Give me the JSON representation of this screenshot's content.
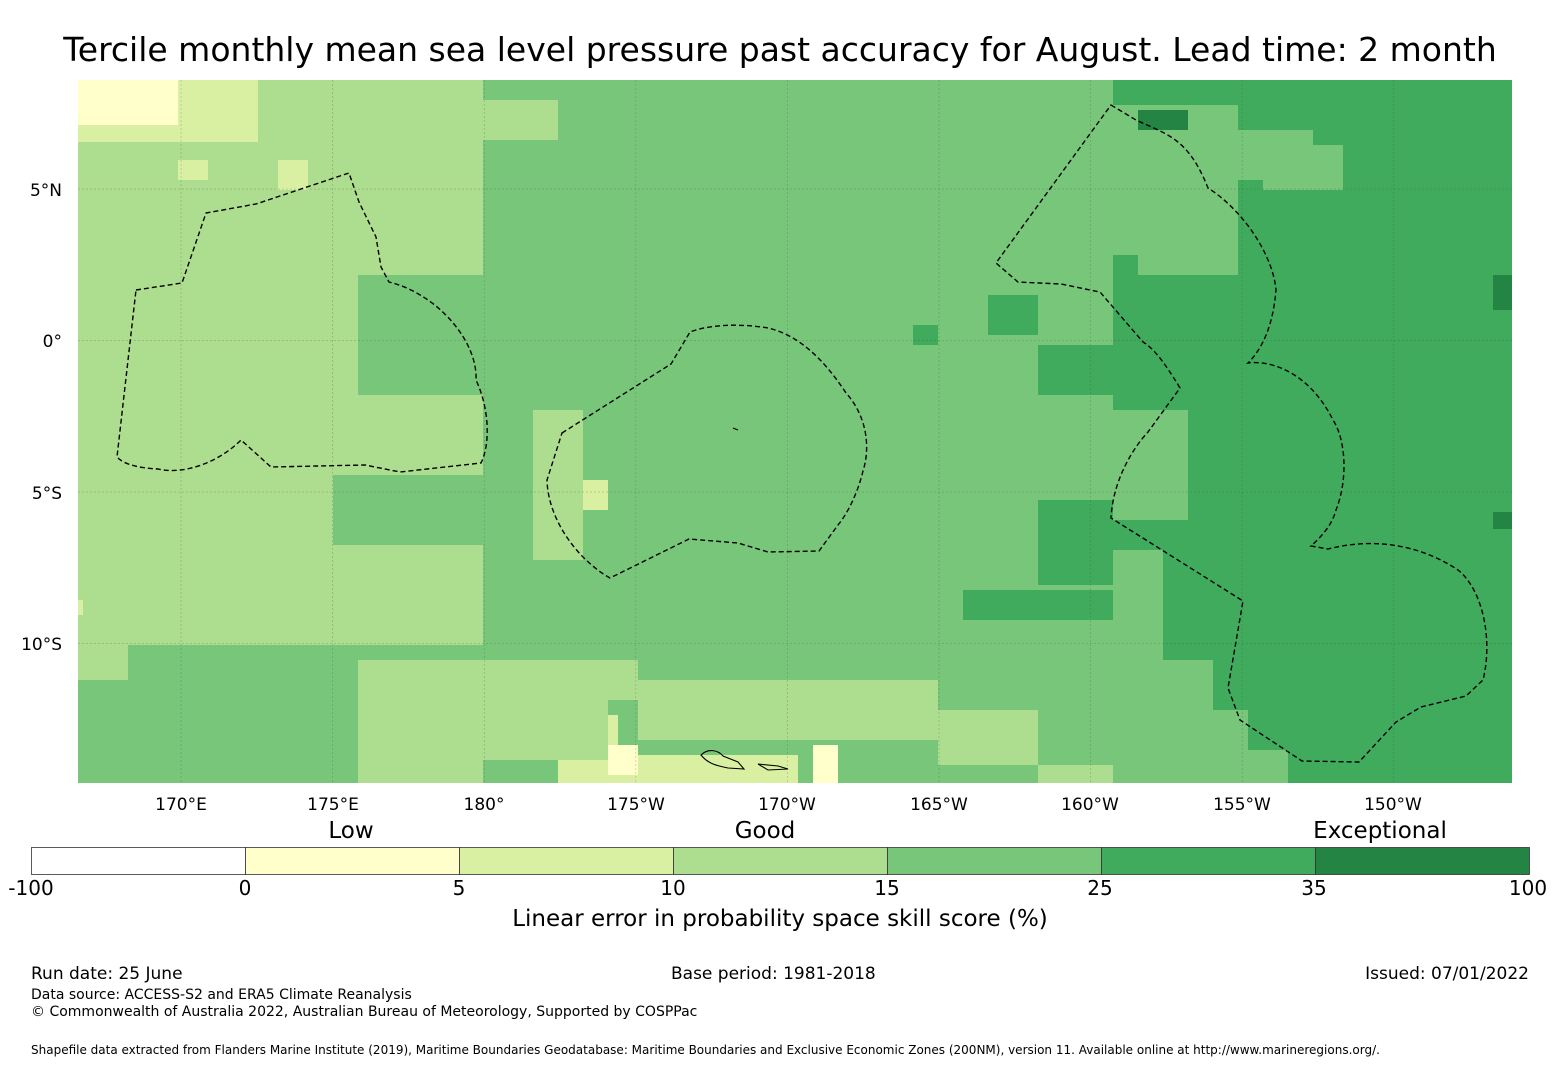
{
  "title": "Tercile monthly mean sea level pressure past accuracy for August. Lead time: 2 month",
  "map": {
    "lat_labels": [
      "5°N",
      "0°",
      "5°S",
      "10°S"
    ],
    "lon_labels": [
      "170°E",
      "175°E",
      "180°",
      "175°W",
      "170°W",
      "165°W",
      "160°W",
      "155°W",
      "150°W"
    ],
    "longitude_range_deg_east": [
      166.6,
      213.9
    ],
    "latitude_range_deg": [
      -14.6,
      8.6
    ],
    "gridlines": true,
    "dashed_lines_show": "EEZ maritime boundaries"
  },
  "colorbar": {
    "categories": [
      "Low",
      "Good",
      "Exceptional"
    ],
    "ticks": [
      "-100",
      "0",
      "5",
      "10",
      "15",
      "25",
      "35",
      "100"
    ],
    "bins": [
      {
        "from": -100,
        "to": 0,
        "color": "#ffffff"
      },
      {
        "from": 0,
        "to": 5,
        "color": "#ffffcc"
      },
      {
        "from": 5,
        "to": 10,
        "color": "#d9f0a3"
      },
      {
        "from": 10,
        "to": 15,
        "color": "#addd8e"
      },
      {
        "from": 15,
        "to": 25,
        "color": "#78c679"
      },
      {
        "from": 25,
        "to": 35,
        "color": "#41ab5d"
      },
      {
        "from": 35,
        "to": 100,
        "color": "#238443"
      }
    ],
    "label": "Linear error in probability space skill score (%)"
  },
  "footer": {
    "run_date": "Run date: 25 June",
    "base_period": "Base period: 1981-2018",
    "issued": "Issued: 07/01/2022",
    "data_source": "Data source: ACCESS-S2 and ERA5 Climate Reanalysis",
    "copyright": "© Commonwealth of Australia 2022, Australian Bureau of Meteorology, Supported by COSPPac",
    "shapefile": "Shapefile data extracted from Flanders Marine Institute (2019), Maritime Boundaries Geodatabase: Maritime Boundaries and Exclusive Economic Zones (200NM), version 11. Available online at http://www.marineregions.org/."
  }
}
